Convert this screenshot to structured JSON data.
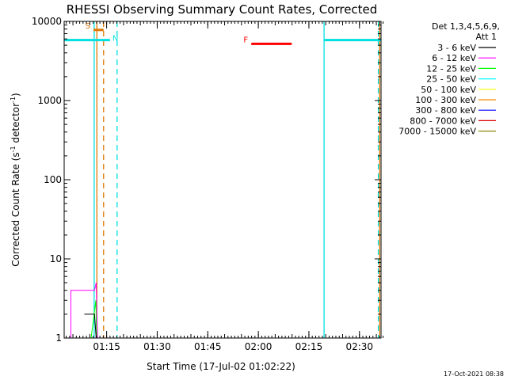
{
  "chart_data": {
    "type": "line",
    "title": "RHESSI Observing Summary Count Rates, Corrected",
    "xlabel": "Start Time (17-Jul-02 01:02:22)",
    "ylabel_parts": [
      "Corrected Count Rate (s",
      "-1",
      " detector",
      "-1",
      ")"
    ],
    "ylim": [
      1,
      10000
    ],
    "y_scale": "log",
    "xlim_minutes": [
      0,
      94
    ],
    "x_ticks": [
      {
        "label": "01:15",
        "t": 12.6
      },
      {
        "label": "01:30",
        "t": 27.6
      },
      {
        "label": "01:45",
        "t": 42.6
      },
      {
        "label": "02:00",
        "t": 57.6
      },
      {
        "label": "02:15",
        "t": 72.6
      },
      {
        "label": "02:30",
        "t": 87.6
      }
    ],
    "y_ticks": [
      {
        "label": "1",
        "v": 1
      },
      {
        "label": "10",
        "v": 10
      },
      {
        "label": "100",
        "v": 100
      },
      {
        "label": "1000",
        "v": 1000
      },
      {
        "label": "10000",
        "v": 10000
      }
    ],
    "legend_header": [
      "Det 1,3,4,5,6,9,",
      "Att 1"
    ],
    "series": [
      {
        "name": "3 - 6 keV",
        "color": "#000000",
        "points": [
          [
            6,
            2
          ],
          [
            8.5,
            2
          ],
          [
            9,
            2
          ],
          [
            9.5,
            1
          ]
        ]
      },
      {
        "name": "6 - 12 keV",
        "color": "#ff00ff",
        "points": [
          [
            0,
            1
          ],
          [
            2,
            1
          ],
          [
            2,
            4
          ],
          [
            5,
            4
          ],
          [
            8,
            4
          ],
          [
            9,
            4
          ],
          [
            9.5,
            5
          ],
          [
            9.9,
            1
          ]
        ]
      },
      {
        "name": "12 - 25 keV",
        "color": "#00ff00",
        "points": [
          [
            0,
            1
          ],
          [
            5,
            1
          ],
          [
            8,
            1
          ],
          [
            9.4,
            3
          ],
          [
            9.6,
            1
          ]
        ]
      },
      {
        "name": "25 - 50 keV",
        "color": "#00ffff",
        "points": [
          [
            0,
            1
          ],
          [
            2,
            1
          ],
          [
            5,
            1
          ],
          [
            8,
            1
          ],
          [
            9.5,
            1
          ]
        ]
      },
      {
        "name": "50 - 100 keV",
        "color": "#ffff00",
        "points": [
          [
            0,
            1
          ],
          [
            2,
            1
          ],
          [
            3,
            1
          ],
          [
            6,
            1
          ],
          [
            7.3,
            1
          ],
          [
            8.3,
            1
          ],
          [
            9.5,
            1
          ]
        ]
      },
      {
        "name": "100 - 300 keV",
        "color": "#ff8c00",
        "points": [
          [
            1,
            1
          ],
          [
            4,
            1
          ],
          [
            7,
            1
          ],
          [
            8.7,
            1
          ],
          [
            9.5,
            1
          ]
        ]
      },
      {
        "name": "300 - 800 keV",
        "color": "#0000ff",
        "points": [
          [
            6,
            1
          ],
          [
            8.5,
            1
          ],
          [
            9.5,
            1
          ]
        ]
      },
      {
        "name": "800 - 7000 keV",
        "color": "#dd0000",
        "points": [
          [
            0,
            1
          ],
          [
            5,
            1
          ],
          [
            8.7,
            1
          ],
          [
            9.5,
            1
          ]
        ]
      },
      {
        "name": "7000 - 15000 keV",
        "color": "#888800",
        "points": [
          [
            0,
            1
          ],
          [
            3,
            1
          ],
          [
            6,
            1
          ],
          [
            9.5,
            1
          ]
        ]
      }
    ],
    "markers": [
      {
        "label": "S",
        "color": "#e07800",
        "t0": 8.7,
        "t1": 11.7,
        "v": 7800
      },
      {
        "label": "N",
        "color": "#00e0e0",
        "t0": 0,
        "t1": 13.6,
        "v": 5800
      },
      {
        "label": "F",
        "color": "#ff0000",
        "t0": 55.5,
        "t1": 67.5,
        "v": 5200
      },
      {
        "label": "",
        "color": "#00e0e0",
        "t0": 77.1,
        "t1": 94,
        "v": 5800
      }
    ],
    "vertical_lines": [
      {
        "t": 8.9,
        "color": "#00e0e0",
        "style": "solid"
      },
      {
        "t": 9.7,
        "color": "#e07800",
        "style": "solid"
      },
      {
        "t": 11.7,
        "color": "#e07800",
        "style": "dashed"
      },
      {
        "t": 15.7,
        "color": "#00e0e0",
        "style": "dashed"
      },
      {
        "t": 77.1,
        "color": "#00e0e0",
        "style": "solid"
      },
      {
        "t": 93.2,
        "color": "#00e0e0",
        "style": "dashed"
      },
      {
        "t": 93.6,
        "color": "#e07800",
        "style": "solid"
      }
    ]
  },
  "footer_date": "17-Oct-2021 08:38"
}
